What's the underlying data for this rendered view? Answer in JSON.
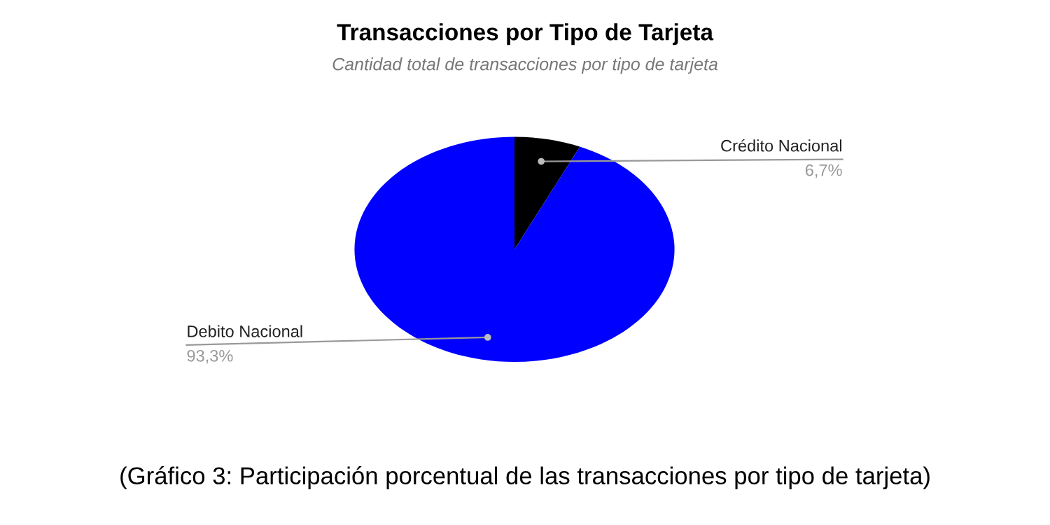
{
  "chart_data": {
    "type": "pie",
    "title": "Transacciones por Tipo de Tarjeta",
    "subtitle": "Cantidad total de transacciones por tipo de tarjeta",
    "categories": [
      "Crédito Nacional",
      "Debito Nacional"
    ],
    "values": [
      6.7,
      93.3
    ],
    "colors": [
      "#000000",
      "#0000ff"
    ],
    "value_labels": [
      "6,7%",
      "93,3%"
    ],
    "legend": false,
    "annotations": [
      "(Gráfico 3: Participación porcentual de las transacciones por tipo de tarjeta)"
    ]
  }
}
